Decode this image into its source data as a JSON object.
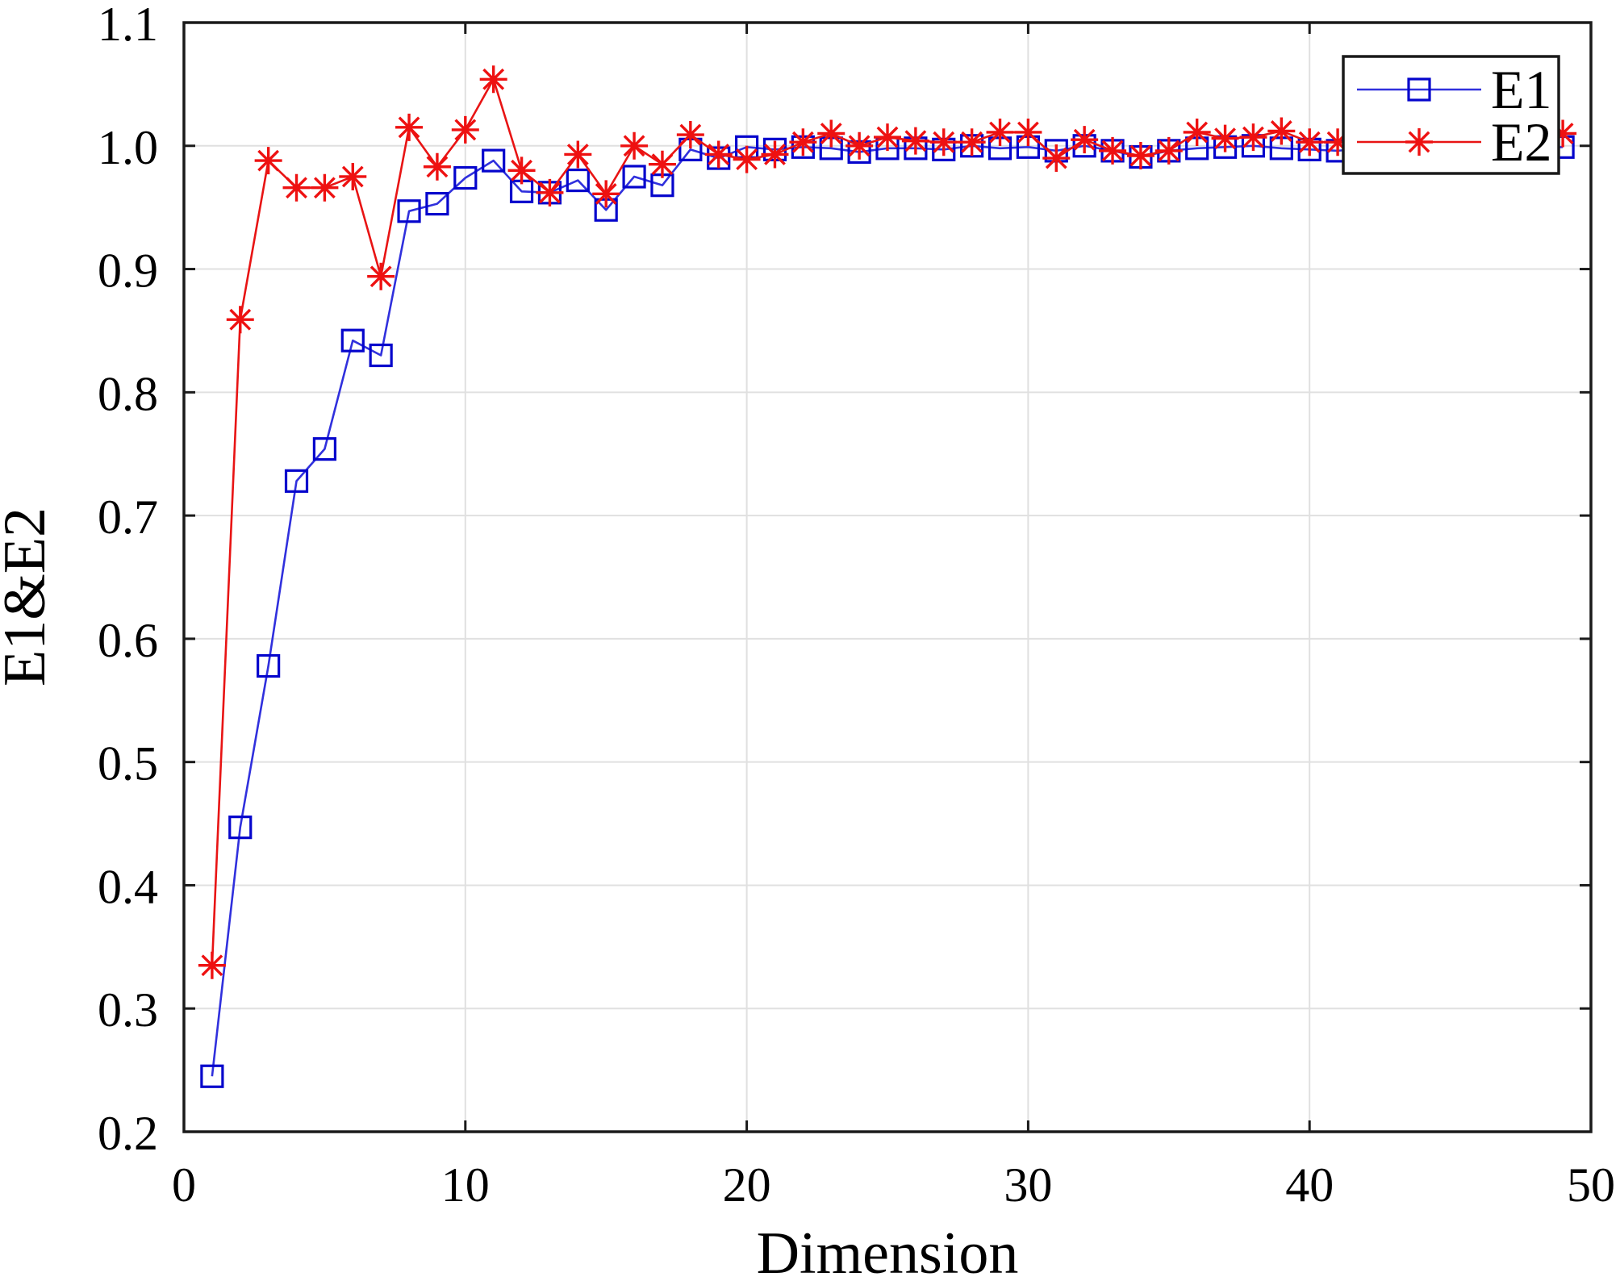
{
  "figure": {
    "background": "#ffffff"
  },
  "chart_data": {
    "type": "line",
    "title": "",
    "xlabel": "Dimension",
    "ylabel": "E1&E2",
    "xlim": [
      0,
      50
    ],
    "ylim": [
      0.2,
      1.1
    ],
    "grid": true,
    "legend_position": "top-right",
    "x_tick_values": [
      0,
      10,
      20,
      30,
      40,
      50
    ],
    "x_tick_labels": [
      "0",
      "10",
      "20",
      "30",
      "40",
      "50"
    ],
    "y_tick_values": [
      0.2,
      0.3,
      0.4,
      0.5,
      0.6,
      0.7,
      0.8,
      0.9,
      1.0,
      1.1
    ],
    "y_tick_labels": [
      "0.2",
      "0.3",
      "0.4",
      "0.5",
      "0.6",
      "0.7",
      "0.8",
      "0.9",
      "1.0",
      "1.1"
    ],
    "x": [
      1,
      2,
      3,
      4,
      5,
      6,
      7,
      8,
      9,
      10,
      11,
      12,
      13,
      14,
      15,
      16,
      17,
      18,
      19,
      20,
      21,
      22,
      23,
      24,
      25,
      26,
      27,
      28,
      29,
      30,
      31,
      32,
      33,
      34,
      35,
      36,
      37,
      38,
      39,
      40,
      41,
      42,
      43,
      44,
      45,
      46,
      47,
      48,
      49
    ],
    "series": [
      {
        "name": "E1",
        "marker": "square",
        "color": "#0505cc",
        "line_color": "#3030dd",
        "values": [
          0.245,
          0.447,
          0.578,
          0.728,
          0.754,
          0.842,
          0.83,
          0.947,
          0.953,
          0.974,
          0.988,
          0.963,
          0.962,
          0.972,
          0.948,
          0.975,
          0.968,
          0.997,
          0.99,
          0.999,
          0.997,
          0.999,
          0.998,
          0.995,
          0.998,
          0.998,
          0.997,
          1.0,
          0.998,
          0.999,
          0.996,
          1.0,
          0.996,
          0.991,
          0.996,
          0.998,
          0.999,
          1.0,
          0.998,
          0.997,
          0.996,
          0.998,
          0.998,
          0.998,
          0.998,
          0.998,
          0.998,
          0.998,
          0.999
        ]
      },
      {
        "name": "E2",
        "marker": "asterisk",
        "color": "#ee1111",
        "line_color": "#e81414",
        "values": [
          0.335,
          0.859,
          0.988,
          0.966,
          0.966,
          0.975,
          0.894,
          1.015,
          0.983,
          1.013,
          1.054,
          0.98,
          0.962,
          0.993,
          0.961,
          1.0,
          0.985,
          1.009,
          0.993,
          0.989,
          0.993,
          1.003,
          1.01,
          1.0,
          1.007,
          1.004,
          1.003,
          1.003,
          1.011,
          1.011,
          0.99,
          1.005,
          0.996,
          0.992,
          0.996,
          1.011,
          1.006,
          1.007,
          1.012,
          1.003,
          1.003,
          1.005,
          1.005,
          1.005,
          1.005,
          1.005,
          1.005,
          1.005,
          1.01
        ]
      }
    ],
    "colors": {
      "grid": "#e0e0e0",
      "axis": "#1a1a1a",
      "text": "#000000",
      "background": "#ffffff"
    }
  }
}
